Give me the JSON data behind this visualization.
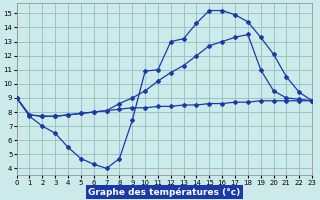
{
  "title": "Graphe des températures (°c)",
  "background_color": "#cceaea",
  "grid_color": "#99c4c4",
  "line_color": "#1a3aab",
  "xlim": [
    0,
    23
  ],
  "ylim": [
    3.5,
    15.7
  ],
  "xticks": [
    0,
    1,
    2,
    3,
    4,
    5,
    6,
    7,
    8,
    9,
    10,
    11,
    12,
    13,
    14,
    15,
    16,
    17,
    18,
    19,
    20,
    21,
    22,
    23
  ],
  "yticks": [
    4,
    5,
    6,
    7,
    8,
    9,
    10,
    11,
    12,
    13,
    14,
    15
  ],
  "line1_x": [
    0,
    1,
    2,
    3,
    4,
    5,
    6,
    7,
    8,
    9,
    10,
    11,
    12,
    13,
    14,
    15,
    16,
    17,
    18,
    19,
    20,
    21,
    22,
    23
  ],
  "line1_y": [
    9.0,
    7.7,
    7.0,
    6.5,
    5.5,
    4.7,
    4.3,
    4.0,
    4.7,
    7.4,
    10.9,
    11.0,
    13.0,
    13.2,
    14.3,
    15.2,
    15.2,
    14.9,
    14.4,
    13.3,
    12.1,
    10.5,
    9.4,
    8.8
  ],
  "line2_x": [
    0,
    1,
    2,
    3,
    4,
    5,
    6,
    7,
    8,
    9,
    10,
    11,
    12,
    13,
    14,
    15,
    16,
    17,
    18,
    19,
    20,
    21,
    22,
    23
  ],
  "line2_y": [
    9.0,
    7.8,
    7.7,
    7.7,
    7.8,
    7.9,
    8.0,
    8.1,
    8.6,
    9.0,
    9.5,
    10.2,
    10.8,
    11.3,
    12.0,
    12.7,
    13.0,
    13.3,
    13.5,
    11.0,
    9.5,
    9.0,
    8.9,
    8.8
  ],
  "line3_x": [
    0,
    1,
    2,
    3,
    4,
    5,
    6,
    7,
    8,
    9,
    10,
    11,
    12,
    13,
    14,
    15,
    16,
    17,
    18,
    19,
    20,
    21,
    22,
    23
  ],
  "line3_y": [
    9.0,
    7.8,
    7.7,
    7.7,
    7.8,
    7.9,
    8.0,
    8.1,
    8.2,
    8.3,
    8.3,
    8.4,
    8.4,
    8.5,
    8.5,
    8.6,
    8.6,
    8.7,
    8.7,
    8.8,
    8.8,
    8.8,
    8.8,
    8.8
  ]
}
